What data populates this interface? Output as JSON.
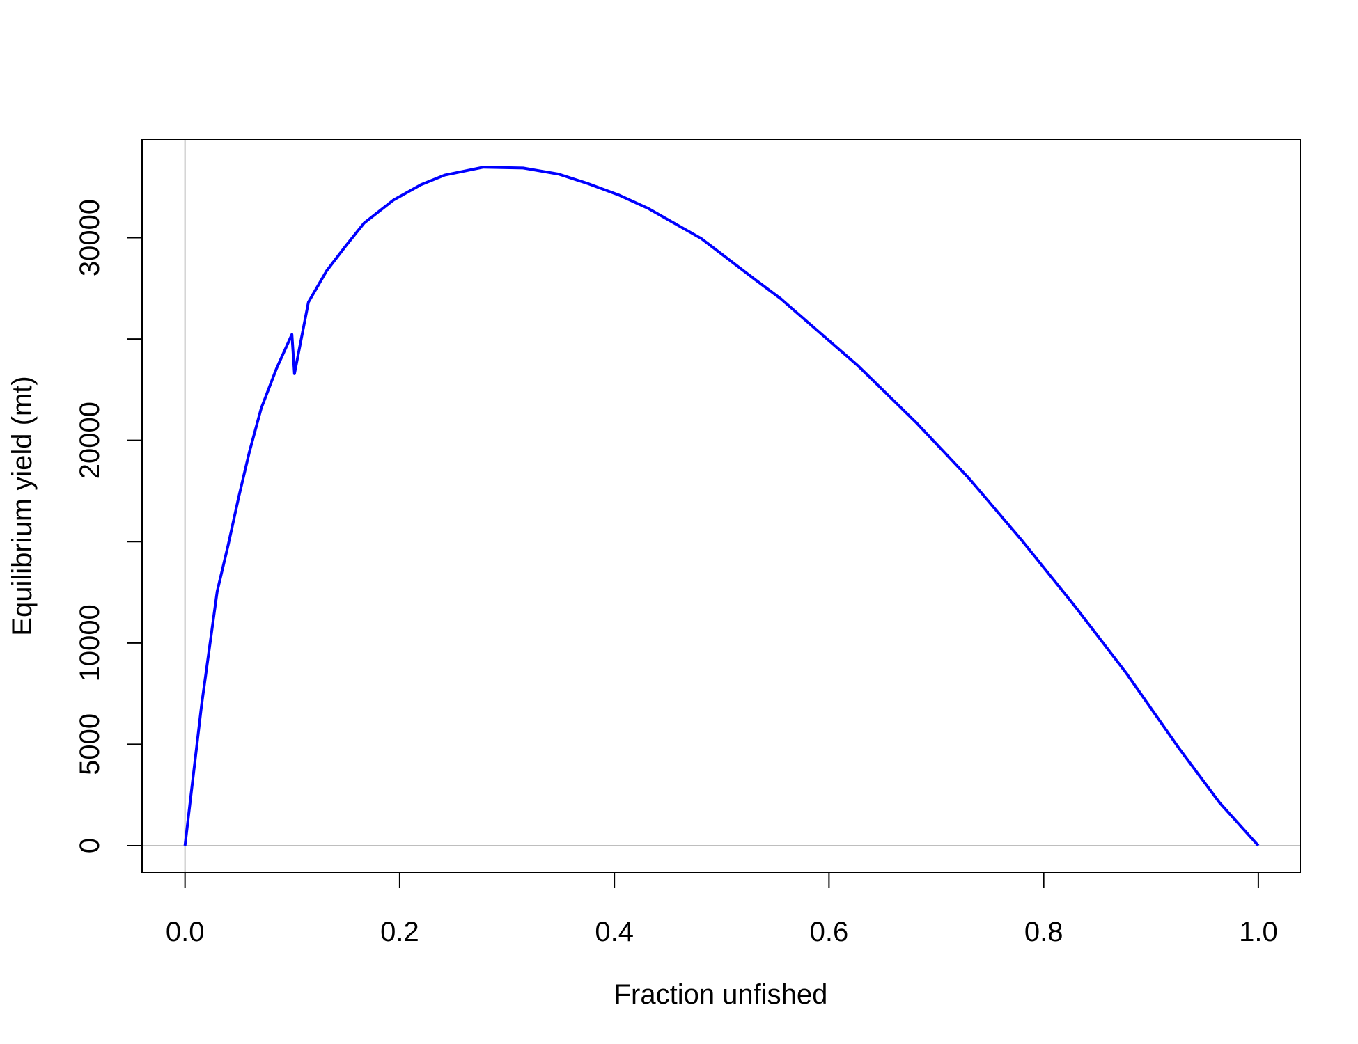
{
  "chart_data": {
    "type": "line",
    "xlabel": "Fraction unfished",
    "ylabel": "Equilibrium yield (mt)",
    "x": [
      0,
      0.0155,
      0.03,
      0.04,
      0.05,
      0.06,
      0.071,
      0.085,
      0.0996,
      0.102,
      0.115,
      0.132,
      0.15,
      0.167,
      0.194,
      0.22,
      0.242,
      0.278,
      0.315,
      0.348,
      0.376,
      0.404,
      0.431,
      0.481,
      0.531,
      0.555,
      0.627,
      0.681,
      0.731,
      0.78,
      0.829,
      0.877,
      0.926,
      0.964,
      1
    ],
    "series": [
      {
        "color": "#0000ff",
        "values": [
          0,
          6960,
          12550,
          14780,
          17190,
          19430,
          21580,
          23510,
          25230,
          23290,
          26820,
          28370,
          29610,
          30730,
          31850,
          32620,
          33090,
          33480,
          33440,
          33140,
          32660,
          32110,
          31460,
          29960,
          27940,
          26990,
          23680,
          20890,
          18090,
          15040,
          11820,
          8510,
          4810,
          2110,
          0
        ]
      }
    ],
    "xlim": [
      -0.04,
      1.039
    ],
    "ylim": [
      -1341,
      34861
    ],
    "xticks": [
      {
        "value": 0,
        "label": "0.0"
      },
      0.2,
      0.4,
      0.6,
      0.8,
      {
        "value": 1,
        "label": "1.0"
      }
    ],
    "yticks": [
      0,
      5000,
      10000,
      {
        "value": 15000,
        "label": null
      },
      20000,
      {
        "value": 25000,
        "label": null
      },
      30000
    ],
    "reference_lines": {
      "x": 0,
      "y": 0,
      "color": "#bebebe"
    }
  }
}
